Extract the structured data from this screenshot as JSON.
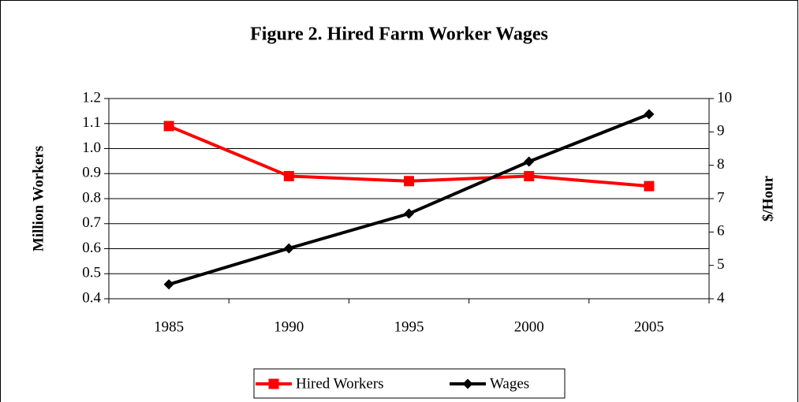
{
  "chart_data": {
    "type": "line",
    "title": "Figure 2. Hired Farm Worker Wages",
    "y_label": "Million Workers",
    "y2_label": "$/Hour",
    "categories": [
      "1985",
      "1990",
      "1995",
      "2000",
      "2005"
    ],
    "series": [
      {
        "name": "Hired Workers",
        "color": "#ff0000",
        "marker": "square",
        "values": [
          1.09,
          0.89,
          0.87,
          0.89,
          0.85
        ]
      },
      {
        "name": "Wages",
        "color": "#000000",
        "marker": "diamond",
        "axis": "y2",
        "values": [
          4.43,
          5.51,
          6.55,
          8.11,
          9.53
        ]
      }
    ],
    "ylim": [
      0.4,
      1.2
    ],
    "yticks": [
      0.4,
      0.5,
      0.6,
      0.7,
      0.8,
      0.9,
      {
        "value": 1,
        "label": "1.0"
      },
      1.1,
      1.2
    ],
    "y2lim": [
      4,
      10
    ],
    "y2ticks": [
      4,
      5,
      6,
      7,
      8,
      9,
      10
    ],
    "grid": true,
    "legend": "bottom"
  }
}
